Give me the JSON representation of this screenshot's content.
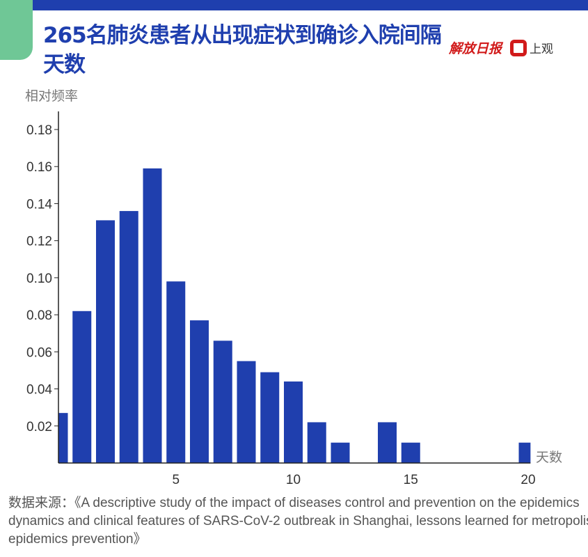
{
  "header": {
    "title": "265名肺炎患者从出现症状到确诊入院间隔天数",
    "logo_jiefang": "解放日报",
    "logo_shangguan": "上观"
  },
  "chart_data": {
    "type": "bar",
    "title": "265名肺炎患者从出现症状到确诊入院间隔天数",
    "ylabel": "相对频率",
    "xlabel": "天数",
    "x": [
      0,
      1,
      2,
      3,
      4,
      5,
      6,
      7,
      8,
      9,
      10,
      11,
      12,
      13,
      14,
      15,
      16,
      17,
      18,
      19,
      20
    ],
    "values": [
      0.027,
      0.082,
      0.131,
      0.136,
      0.159,
      0.098,
      0.077,
      0.066,
      0.055,
      0.049,
      0.044,
      0.022,
      0.011,
      0,
      0.022,
      0.011,
      0,
      0,
      0,
      0,
      0.011
    ],
    "xticks": [
      5,
      10,
      15,
      20
    ],
    "yticks": [
      0.02,
      0.04,
      0.06,
      0.08,
      0.1,
      0.12,
      0.14,
      0.16,
      0.18
    ],
    "ytick_labels": [
      "0.02",
      "0.04",
      "0.06",
      "0.08",
      "0.10",
      "0.12",
      "0.14",
      "0.16",
      "0.18"
    ],
    "xlim": [
      0,
      20.1
    ],
    "ylim": [
      0,
      0.18
    ],
    "grid": false,
    "color": "#1f3fae"
  },
  "source": "数据来源：《A descriptive study of the impact of diseases control and prevention on the epidemics dynamics and clinical features of SARS-CoV-2 outbreak in Shanghai, lessons learned for metropolis epidemics prevention》"
}
